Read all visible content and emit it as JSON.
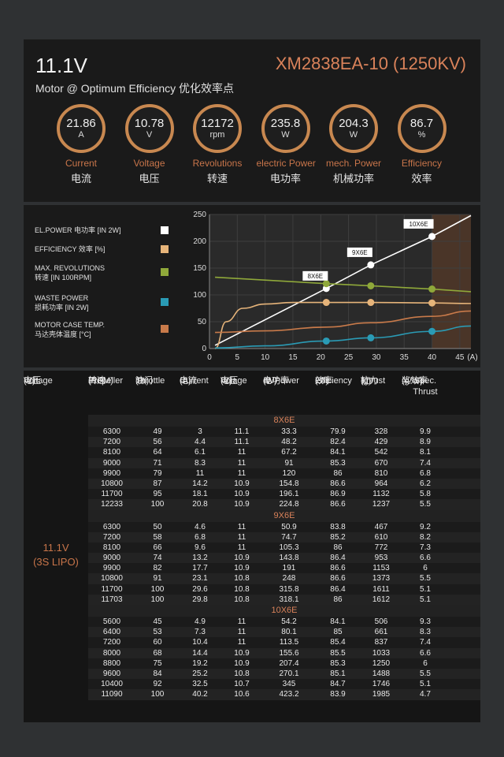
{
  "header": {
    "voltage": "11.1V",
    "model": "XM2838EA-10 (1250KV)",
    "subtitle": "Motor @ Optimum Efficiency  优化效率点"
  },
  "gauges": [
    {
      "value": "21.86",
      "unit": "A",
      "label_en": "Current",
      "label_cn": "电流"
    },
    {
      "value": "10.78",
      "unit": "V",
      "label_en": "Voltage",
      "label_cn": "电压"
    },
    {
      "value": "12172",
      "unit": "rpm",
      "label_en": "Revolutions",
      "label_cn": "转速"
    },
    {
      "value": "235.8",
      "unit": "W",
      "label_en": "electric Power",
      "label_cn": "电功率"
    },
    {
      "value": "204.3",
      "unit": "W",
      "label_en": "mech. Power",
      "label_cn": "机械功率"
    },
    {
      "value": "86.7",
      "unit": "%",
      "label_en": "Efficiency",
      "label_cn": "效率"
    }
  ],
  "legend": [
    {
      "line1": "EL.POWER 电功率 [IN 2W]",
      "line2": "",
      "color": "#ffffff"
    },
    {
      "line1": "EFFICIENCY 效率 [%]",
      "line2": "",
      "color": "#e6b47a"
    },
    {
      "line1": "MAX. REVOLUTIONS",
      "line2": "转速 [IN 100RPM]",
      "color": "#8fa83a"
    },
    {
      "line1": "WASTE POWER",
      "line2": "损耗功率 [IN 2W]",
      "color": "#2a9bb5"
    },
    {
      "line1": "MOTOR CASE TEMP.",
      "line2": "马达壳体温度 [°C]",
      "color": "#c87a4a"
    }
  ],
  "chart_data": {
    "type": "line",
    "xlim": [
      0,
      47
    ],
    "ylim": [
      0,
      250
    ],
    "xticks": [
      "0",
      "5",
      "10",
      "15",
      "20",
      "25",
      "30",
      "35",
      "40",
      "45",
      "(A)"
    ],
    "yticks": [
      "0",
      "50",
      "100",
      "150",
      "200",
      "250"
    ],
    "highlight_x": [
      40,
      47
    ],
    "series": [
      {
        "name": "EL.POWER 电功率 [IN 2W]",
        "color": "#ffffff",
        "x": [
          1,
          21,
          29,
          40,
          47
        ],
        "y": [
          6,
          112,
          156,
          209,
          248
        ]
      },
      {
        "name": "EFFICIENCY 效率 [%]",
        "color": "#e6b47a",
        "x": [
          1,
          3,
          6,
          10,
          15,
          21,
          29,
          40,
          47
        ],
        "y": [
          0,
          50,
          75,
          83,
          86,
          86,
          86,
          85,
          84
        ]
      },
      {
        "name": "MAX. REVOLUTIONS",
        "color": "#8fa83a",
        "x": [
          1,
          21,
          29,
          40,
          47
        ],
        "y": [
          133,
          121,
          117,
          111,
          106
        ]
      },
      {
        "name": "WASTE POWER",
        "color": "#2a9bb5",
        "x": [
          1,
          10,
          21,
          29,
          40,
          47
        ],
        "y": [
          1,
          5,
          14,
          20,
          32,
          42
        ]
      },
      {
        "name": "MOTOR CASE TEMP.",
        "color": "#c87a4a",
        "x": [
          1,
          10,
          21,
          29,
          40,
          47
        ],
        "y": [
          30,
          33,
          40,
          48,
          60,
          70
        ]
      }
    ],
    "markers": [
      {
        "x": 21,
        "y": 112,
        "color": "#ffffff"
      },
      {
        "x": 29,
        "y": 156,
        "color": "#ffffff"
      },
      {
        "x": 40,
        "y": 209,
        "color": "#ffffff"
      },
      {
        "x": 21,
        "y": 121,
        "color": "#8fa83a"
      },
      {
        "x": 29,
        "y": 117,
        "color": "#8fa83a"
      },
      {
        "x": 40,
        "y": 111,
        "color": "#8fa83a"
      },
      {
        "x": 21,
        "y": 86,
        "color": "#e6b47a"
      },
      {
        "x": 29,
        "y": 86,
        "color": "#e6b47a"
      },
      {
        "x": 40,
        "y": 85,
        "color": "#e6b47a"
      },
      {
        "x": 21,
        "y": 14,
        "color": "#2a9bb5"
      },
      {
        "x": 29,
        "y": 20,
        "color": "#2a9bb5"
      },
      {
        "x": 40,
        "y": 32,
        "color": "#2a9bb5"
      }
    ],
    "annotations": [
      {
        "text": "8X6E",
        "x": 21,
        "y": 112
      },
      {
        "text": "9X6E",
        "x": 29,
        "y": 156
      },
      {
        "text": "10X6E",
        "x": 40,
        "y": 209
      }
    ]
  },
  "table": {
    "headers": [
      {
        "en": "Voltage",
        "cn": "电压",
        "unit": "(V)"
      },
      {
        "en": "Propeller",
        "cn": "转速",
        "unit": "(RPM)"
      },
      {
        "en": "Throttle",
        "cn": "油门",
        "unit": "(%)"
      },
      {
        "en": "Current",
        "cn": "电流",
        "unit": "(A)"
      },
      {
        "en": "Volage",
        "cn": "电压",
        "unit": "(V)"
      },
      {
        "en": "el. Power",
        "cn": "电功率",
        "unit": "(W)"
      },
      {
        "en": "Efficiency",
        "cn": "效率",
        "unit": "(%)"
      },
      {
        "en": "Thrust",
        "cn": "拉力",
        "unit": "(g)"
      },
      {
        "en": "Spec. Thrust",
        "cn": "桨效率",
        "unit": "(g/W)"
      }
    ],
    "voltage_label": "11.1V",
    "voltage_sub": "(3S LIPO)",
    "groups": [
      {
        "name": "8X6E",
        "rows": [
          [
            "6300",
            "49",
            "3",
            "11.1",
            "33.3",
            "79.9",
            "328",
            "9.9"
          ],
          [
            "7200",
            "56",
            "4.4",
            "11.1",
            "48.2",
            "82.4",
            "429",
            "8.9"
          ],
          [
            "8100",
            "64",
            "6.1",
            "11",
            "67.2",
            "84.1",
            "542",
            "8.1"
          ],
          [
            "9000",
            "71",
            "8.3",
            "11",
            "91",
            "85.3",
            "670",
            "7.4"
          ],
          [
            "9900",
            "79",
            "11",
            "11",
            "120",
            "86",
            "810",
            "6.8"
          ],
          [
            "10800",
            "87",
            "14.2",
            "10.9",
            "154.8",
            "86.6",
            "964",
            "6.2"
          ],
          [
            "11700",
            "95",
            "18.1",
            "10.9",
            "196.1",
            "86.9",
            "1132",
            "5.8"
          ],
          [
            "12233",
            "100",
            "20.8",
            "10.9",
            "224.8",
            "86.6",
            "1237",
            "5.5"
          ]
        ]
      },
      {
        "name": "9X6E",
        "rows": [
          [
            "6300",
            "50",
            "4.6",
            "11",
            "50.9",
            "83.8",
            "467",
            "9.2"
          ],
          [
            "7200",
            "58",
            "6.8",
            "11",
            "74.7",
            "85.2",
            "610",
            "8.2"
          ],
          [
            "8100",
            "66",
            "9.6",
            "11",
            "105.3",
            "86",
            "772",
            "7.3"
          ],
          [
            "9000",
            "74",
            "13.2",
            "10.9",
            "143.8",
            "86.4",
            "953",
            "6.6"
          ],
          [
            "9900",
            "82",
            "17.7",
            "10.9",
            "191",
            "86.6",
            "1153",
            "6"
          ],
          [
            "10800",
            "91",
            "23.1",
            "10.8",
            "248",
            "86.6",
            "1373",
            "5.5"
          ],
          [
            "11700",
            "100",
            "29.6",
            "10.8",
            "315.8",
            "86.4",
            "1611",
            "5.1"
          ],
          [
            "11703",
            "100",
            "29.8",
            "10.8",
            "318.1",
            "86",
            "1612",
            "5.1"
          ]
        ]
      },
      {
        "name": "10X6E",
        "rows": [
          [
            "5600",
            "45",
            "4.9",
            "11",
            "54.2",
            "84.1",
            "506",
            "9.3"
          ],
          [
            "6400",
            "53",
            "7.3",
            "11",
            "80.1",
            "85",
            "661",
            "8.3"
          ],
          [
            "7200",
            "60",
            "10.4",
            "11",
            "113.5",
            "85.4",
            "837",
            "7.4"
          ],
          [
            "8000",
            "68",
            "14.4",
            "10.9",
            "155.6",
            "85.5",
            "1033",
            "6.6"
          ],
          [
            "8800",
            "75",
            "19.2",
            "10.9",
            "207.4",
            "85.3",
            "1250",
            "6"
          ],
          [
            "9600",
            "84",
            "25.2",
            "10.8",
            "270.1",
            "85.1",
            "1488",
            "5.5"
          ],
          [
            "10400",
            "92",
            "32.5",
            "10.7",
            "345",
            "84.7",
            "1746",
            "5.1"
          ],
          [
            "11090",
            "100",
            "40.2",
            "10.6",
            "423.2",
            "83.9",
            "1985",
            "4.7"
          ]
        ]
      }
    ]
  }
}
